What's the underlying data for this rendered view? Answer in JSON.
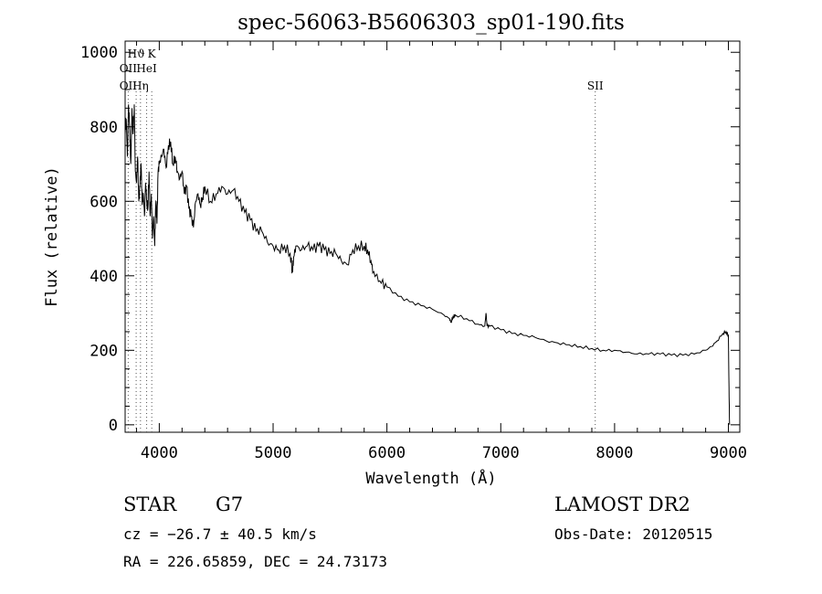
{
  "chart_data": {
    "type": "line",
    "title": "spec-56063-B5606303_sp01-190.fits",
    "xlabel": "Wavelength (Å)",
    "ylabel": "Flux (relative)",
    "xlim": [
      3700,
      9100
    ],
    "ylim": [
      -20,
      1030
    ],
    "x_ticks": [
      4000,
      5000,
      6000,
      7000,
      8000,
      9000
    ],
    "y_ticks": [
      0,
      200,
      400,
      600,
      800,
      1000
    ],
    "grid": false,
    "series": [
      {
        "x": [
          3700,
          3710,
          3720,
          3730,
          3740,
          3750,
          3760,
          3770,
          3780,
          3790,
          3800,
          3810,
          3820,
          3830,
          3840,
          3850,
          3860,
          3870,
          3880,
          3890,
          3900,
          3910,
          3920,
          3930,
          3940,
          3950,
          3960,
          3970,
          3980,
          3990,
          4000,
          4020,
          4040,
          4060,
          4080,
          4100,
          4120,
          4140,
          4160,
          4180,
          4200,
          4220,
          4240,
          4260,
          4280,
          4300,
          4320,
          4340,
          4360,
          4380,
          4400,
          4450,
          4500,
          4550,
          4600,
          4650,
          4700,
          4750,
          4800,
          4850,
          4900,
          4950,
          5000,
          5050,
          5100,
          5150,
          5170,
          5180,
          5200,
          5250,
          5300,
          5350,
          5400,
          5450,
          5500,
          5550,
          5600,
          5650,
          5700,
          5750,
          5800,
          5830,
          5860,
          5880,
          5900,
          5950,
          6000,
          6100,
          6200,
          6300,
          6400,
          6500,
          6550,
          6563,
          6580,
          6600,
          6700,
          6800,
          6860,
          6870,
          6880,
          6900,
          7000,
          7100,
          7200,
          7300,
          7400,
          7500,
          7600,
          7700,
          7800,
          7900,
          8000,
          8100,
          8200,
          8300,
          8400,
          8500,
          8600,
          8700,
          8800,
          8850,
          8900,
          8950,
          8980,
          9000,
          9005,
          9010
        ],
        "y": [
          780,
          820,
          720,
          860,
          800,
          700,
          850,
          780,
          860,
          680,
          650,
          720,
          600,
          640,
          700,
          590,
          620,
          560,
          650,
          600,
          580,
          680,
          560,
          620,
          500,
          560,
          480,
          600,
          540,
          680,
          700,
          720,
          740,
          690,
          750,
          760,
          700,
          720,
          680,
          660,
          680,
          620,
          640,
          580,
          560,
          530,
          600,
          620,
          590,
          610,
          640,
          600,
          620,
          640,
          620,
          630,
          600,
          570,
          550,
          520,
          520,
          490,
          480,
          470,
          480,
          460,
          410,
          450,
          480,
          470,
          480,
          470,
          480,
          470,
          460,
          460,
          440,
          430,
          470,
          480,
          480,
          470,
          440,
          410,
          400,
          380,
          370,
          345,
          330,
          320,
          310,
          295,
          285,
          275,
          290,
          295,
          285,
          270,
          265,
          300,
          265,
          265,
          255,
          245,
          240,
          235,
          225,
          220,
          215,
          210,
          205,
          200,
          200,
          195,
          190,
          190,
          190,
          187,
          187,
          190,
          200,
          210,
          225,
          245,
          250,
          240,
          100,
          0
        ]
      }
    ],
    "annotations": [
      {
        "label": "Hϑ",
        "x": 3797,
        "row": 1
      },
      {
        "label": "K",
        "x": 3934,
        "row": 1
      },
      {
        "label": "OII",
        "x": 3727,
        "row": 2
      },
      {
        "label": "HeI",
        "x": 3889,
        "row": 2
      },
      {
        "label": "OII",
        "x": 3727,
        "row": 3
      },
      {
        "label": "Hη",
        "x": 3835,
        "row": 3
      },
      {
        "label": "SII",
        "x": 7830,
        "row": 3
      }
    ],
    "line_markers": [
      3727,
      3797,
      3835,
      3889,
      3934,
      7830
    ]
  },
  "footer": {
    "class_label": "STAR",
    "subclass": "G7",
    "survey": "LAMOST DR2",
    "cz": "cz = −26.7 ± 40.5 km/s",
    "obs_date": "Obs-Date: 20120515",
    "coords": "RA = 226.65859, DEC =  24.73173"
  }
}
